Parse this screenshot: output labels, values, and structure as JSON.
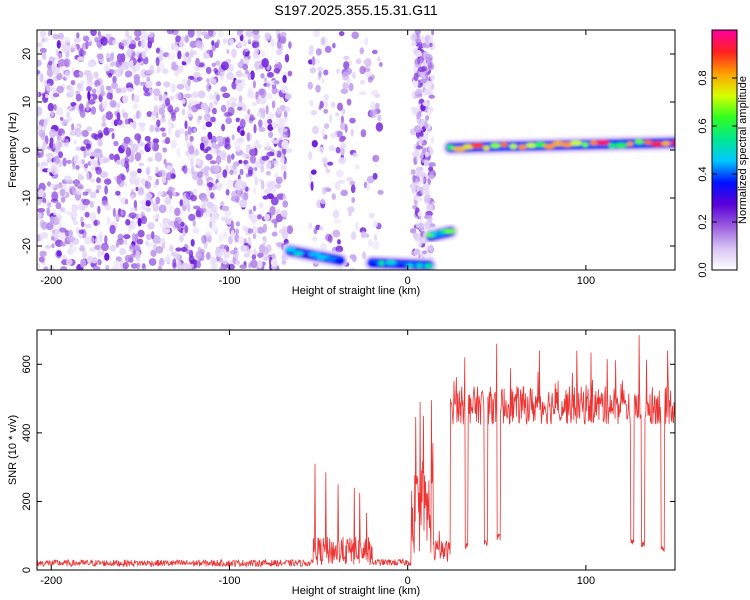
{
  "title": "S197.2025.355.15.31.G11",
  "chart_data": [
    {
      "type": "heatmap",
      "xlabel": "Height of straight line (km)",
      "ylabel": "Frequency (Hz)",
      "xlim": [
        -208,
        150
      ],
      "ylim": [
        -25,
        25
      ],
      "xticks": [
        -200,
        -100,
        0,
        100
      ],
      "yticks": [
        -20,
        -10,
        0,
        10,
        20
      ],
      "colorbar": {
        "label": "Normalized spectral amplitude",
        "range": [
          0,
          1
        ],
        "ticks": [
          0.0,
          0.2,
          0.4,
          0.6,
          0.8
        ],
        "tick_labels": [
          "0.0",
          "0.2",
          "0.4",
          "0.6",
          "0.8"
        ],
        "stops": [
          "#ffffff",
          "#d8c4f4",
          "#9a5ce0",
          "#5a00d8",
          "#0010ff",
          "#00c8ff",
          "#00e890",
          "#30ff20",
          "#d8ff00",
          "#ffa000",
          "#ff2020",
          "#ff00a0"
        ]
      },
      "noise_regions": [
        {
          "x": [
            -208,
            -66
          ],
          "y": [
            -25,
            25
          ],
          "density": "high"
        },
        {
          "x": [
            -55,
            -15
          ],
          "y": [
            -25,
            25
          ],
          "density": "low"
        },
        {
          "x": [
            3,
            14
          ],
          "y": [
            -25,
            25
          ],
          "density": "medium"
        }
      ],
      "tracks": [
        {
          "x": [
            -66,
            -38
          ],
          "freq": [
            -21,
            -23
          ],
          "amplitude": 0.45
        },
        {
          "x": [
            -20,
            12
          ],
          "freq": [
            -23.5,
            -24
          ],
          "amplitude": 0.5
        },
        {
          "x": [
            13,
            24
          ],
          "freq": [
            -18,
            -17
          ],
          "amplitude": 0.6
        },
        {
          "x": [
            24,
            150
          ],
          "freq": [
            0.5,
            1.5
          ],
          "amplitude": 0.85
        }
      ]
    },
    {
      "type": "line",
      "xlabel": "Height of straight line (km)",
      "ylabel": "SNR (10 * v/v)",
      "xlim": [
        -208,
        150
      ],
      "ylim": [
        0,
        700
      ],
      "xticks": [
        -200,
        -100,
        0,
        100
      ],
      "yticks": [
        0,
        200,
        400,
        600
      ],
      "color": "#ee3333",
      "segments": [
        {
          "x": [
            -208,
            -53
          ],
          "base": 20,
          "noise": 14
        },
        {
          "x": [
            -53,
            -20
          ],
          "base": 55,
          "noise": 60
        },
        {
          "x": [
            -20,
            2
          ],
          "base": 22,
          "noise": 14
        },
        {
          "x": [
            2,
            14
          ],
          "base": 170,
          "noise": 180
        },
        {
          "x": [
            14,
            24
          ],
          "base": 55,
          "noise": 45
        },
        {
          "x": [
            24,
            150
          ],
          "base": 480,
          "noise": 80
        }
      ],
      "spikes": [
        {
          "x": -52,
          "y": 310
        },
        {
          "x": -46,
          "y": 285
        },
        {
          "x": -39,
          "y": 250
        },
        {
          "x": -30,
          "y": 240
        },
        {
          "x": -27,
          "y": 225
        },
        {
          "x": 7,
          "y": 490
        },
        {
          "x": 9,
          "y": 450
        },
        {
          "x": 14,
          "y": 370
        },
        {
          "x": 32,
          "y": 620
        },
        {
          "x": 50,
          "y": 660
        },
        {
          "x": 74,
          "y": 640
        },
        {
          "x": 95,
          "y": 640
        },
        {
          "x": 112,
          "y": 615
        },
        {
          "x": 130,
          "y": 685
        },
        {
          "x": 146,
          "y": 640
        }
      ],
      "dips": [
        {
          "x": 33,
          "y": 60
        },
        {
          "x": 44,
          "y": 70
        },
        {
          "x": 51,
          "y": 85
        },
        {
          "x": 126,
          "y": 70
        },
        {
          "x": 132,
          "y": 65
        },
        {
          "x": 143,
          "y": 55
        }
      ]
    }
  ]
}
